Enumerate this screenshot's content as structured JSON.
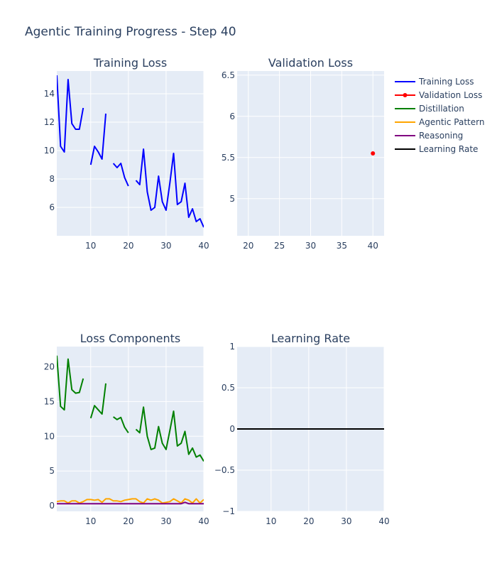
{
  "figure": {
    "title": "Agentic Training Progress - Step 40",
    "background": "#ffffff",
    "plot_background": "#e5ecf6",
    "grid_color": "#ffffff",
    "text_color": "#2a3f5f"
  },
  "legend": {
    "placement": "top-right",
    "items": [
      {
        "label": "Training Loss",
        "color": "#0000ff",
        "marker": false
      },
      {
        "label": "Validation Loss",
        "color": "#ff0000",
        "marker": true
      },
      {
        "label": "Distillation",
        "color": "#008000",
        "marker": false
      },
      {
        "label": "Agentic Pattern",
        "color": "#ffa500",
        "marker": false
      },
      {
        "label": "Reasoning",
        "color": "#800080",
        "marker": false
      },
      {
        "label": "Learning Rate",
        "color": "#000000",
        "marker": false
      }
    ]
  },
  "chart_data": [
    {
      "id": "train",
      "type": "line",
      "title": "Training Loss",
      "xlim": [
        1,
        40
      ],
      "ylim": [
        4,
        15.6
      ],
      "xticks": [
        10,
        20,
        30,
        40
      ],
      "xticklabels": [
        "10",
        "20",
        "30",
        "40"
      ],
      "yticks": [
        6,
        8,
        10,
        12,
        14
      ],
      "yticklabels": [
        "6",
        "8",
        "10",
        "12",
        "14"
      ],
      "series": [
        {
          "name": "Training Loss",
          "color": "#0000ff",
          "x": [
            1,
            2,
            3,
            4,
            5,
            6,
            7,
            8,
            9,
            10,
            11,
            12,
            13,
            14,
            15,
            16,
            17,
            18,
            19,
            20,
            21,
            22,
            23,
            24,
            25,
            26,
            27,
            28,
            29,
            30,
            31,
            32,
            33,
            34,
            35,
            36,
            37,
            38,
            39,
            40
          ],
          "y": [
            15.3,
            10.3,
            9.9,
            15.0,
            11.9,
            11.5,
            11.5,
            13.0,
            null,
            9.0,
            10.3,
            9.9,
            9.4,
            12.6,
            null,
            9.1,
            8.8,
            9.1,
            8.1,
            7.5,
            null,
            7.9,
            7.6,
            10.1,
            7.1,
            5.8,
            6.0,
            8.2,
            6.4,
            5.8,
            7.7,
            9.8,
            6.2,
            6.4,
            7.7,
            5.3,
            5.9,
            5.0,
            5.2,
            4.6
          ]
        }
      ]
    },
    {
      "id": "val",
      "type": "scatter",
      "title": "Validation Loss",
      "xlim": [
        18.2,
        41.8
      ],
      "ylim": [
        4.55,
        6.55
      ],
      "xticks": [
        20,
        25,
        30,
        35,
        40
      ],
      "xticklabels": [
        "20",
        "25",
        "30",
        "35",
        "40"
      ],
      "yticks": [
        5,
        5.5,
        6,
        6.5
      ],
      "yticklabels": [
        "5",
        "5.5",
        "6",
        "6.5"
      ],
      "series": [
        {
          "name": "Validation Loss",
          "color": "#ff0000",
          "x": [
            40
          ],
          "y": [
            5.55
          ]
        }
      ]
    },
    {
      "id": "comp",
      "type": "line",
      "title": "Loss Components",
      "xlim": [
        1,
        40
      ],
      "ylim": [
        -0.8,
        22.9
      ],
      "xticks": [
        10,
        20,
        30,
        40
      ],
      "xticklabels": [
        "10",
        "20",
        "30",
        "40"
      ],
      "yticks": [
        0,
        5,
        10,
        15,
        20
      ],
      "yticklabels": [
        "0",
        "5",
        "10",
        "15",
        "20"
      ],
      "series": [
        {
          "name": "Distillation",
          "color": "#008000",
          "x": [
            1,
            2,
            3,
            4,
            5,
            6,
            7,
            8,
            9,
            10,
            11,
            12,
            13,
            14,
            15,
            16,
            17,
            18,
            19,
            20,
            21,
            22,
            23,
            24,
            25,
            26,
            27,
            28,
            29,
            30,
            31,
            32,
            33,
            34,
            35,
            36,
            37,
            38,
            39,
            40
          ],
          "y": [
            21.6,
            14.3,
            13.8,
            21.1,
            16.7,
            16.2,
            16.3,
            18.3,
            null,
            12.6,
            14.4,
            13.8,
            13.2,
            17.6,
            null,
            12.8,
            12.4,
            12.7,
            11.3,
            10.5,
            null,
            11.0,
            10.5,
            14.2,
            10.0,
            8.1,
            8.3,
            11.4,
            9.0,
            8.1,
            10.8,
            13.6,
            8.6,
            9.0,
            10.7,
            7.4,
            8.3,
            7.0,
            7.3,
            6.4
          ]
        },
        {
          "name": "Agentic Pattern",
          "color": "#ffa500",
          "x": [
            1,
            2,
            3,
            4,
            5,
            6,
            7,
            8,
            9,
            10,
            11,
            12,
            13,
            14,
            15,
            16,
            17,
            18,
            19,
            20,
            21,
            22,
            23,
            24,
            25,
            26,
            27,
            28,
            29,
            30,
            31,
            32,
            33,
            34,
            35,
            36,
            37,
            38,
            39,
            40
          ],
          "y": [
            0.6,
            0.7,
            0.7,
            0.4,
            0.7,
            0.7,
            0.4,
            0.6,
            0.9,
            0.9,
            0.8,
            0.9,
            0.5,
            1.0,
            1.0,
            0.7,
            0.7,
            0.6,
            0.8,
            0.9,
            1.0,
            1.0,
            0.6,
            0.4,
            1.0,
            0.8,
            1.0,
            0.8,
            0.4,
            0.5,
            0.6,
            1.0,
            0.7,
            0.4,
            1.0,
            0.8,
            0.4,
            1.0,
            0.4,
            0.9
          ]
        },
        {
          "name": "Reasoning",
          "color": "#800080",
          "x": [
            1,
            2,
            3,
            4,
            5,
            6,
            7,
            8,
            9,
            10,
            11,
            12,
            13,
            14,
            15,
            16,
            17,
            18,
            19,
            20,
            21,
            22,
            23,
            24,
            25,
            26,
            27,
            28,
            29,
            30,
            31,
            32,
            33,
            34,
            35,
            36,
            37,
            38,
            39,
            40
          ],
          "y": [
            0.3,
            0.3,
            0.3,
            0.3,
            0.3,
            0.3,
            0.3,
            0.3,
            0.3,
            0.3,
            0.3,
            0.3,
            0.3,
            0.3,
            0.3,
            0.3,
            0.3,
            0.3,
            0.3,
            0.3,
            0.3,
            0.3,
            0.3,
            0.3,
            0.3,
            0.3,
            0.3,
            0.3,
            0.3,
            0.3,
            0.3,
            0.3,
            0.3,
            0.3,
            0.5,
            0.3,
            0.3,
            0.3,
            0.3,
            0.3
          ]
        }
      ]
    },
    {
      "id": "lr",
      "type": "line",
      "title": "Learning Rate",
      "xlim": [
        1,
        40
      ],
      "ylim": [
        -1,
        1
      ],
      "xticks": [
        10,
        20,
        30,
        40
      ],
      "xticklabels": [
        "10",
        "20",
        "30",
        "40"
      ],
      "yticks": [
        -1,
        -0.5,
        0,
        0.5,
        1
      ],
      "yticklabels": [
        "−1",
        "−0.5",
        "0",
        "0.5",
        "1"
      ],
      "series": [
        {
          "name": "Learning Rate",
          "color": "#000000",
          "x": [
            1,
            2,
            3,
            4,
            5,
            6,
            7,
            8,
            9,
            10,
            11,
            12,
            13,
            14,
            15,
            16,
            17,
            18,
            19,
            20,
            21,
            22,
            23,
            24,
            25,
            26,
            27,
            28,
            29,
            30,
            31,
            32,
            33,
            34,
            35,
            36,
            37,
            38,
            39,
            40
          ],
          "y": [
            0,
            0,
            0,
            0,
            0,
            0,
            0,
            0,
            0,
            0,
            0,
            0,
            0,
            0,
            0,
            0,
            0,
            0,
            0,
            0,
            0,
            0,
            0,
            0,
            0,
            0,
            0,
            0,
            0,
            0,
            0,
            0,
            0,
            0,
            0,
            0,
            0,
            0,
            0,
            0
          ]
        }
      ]
    }
  ]
}
